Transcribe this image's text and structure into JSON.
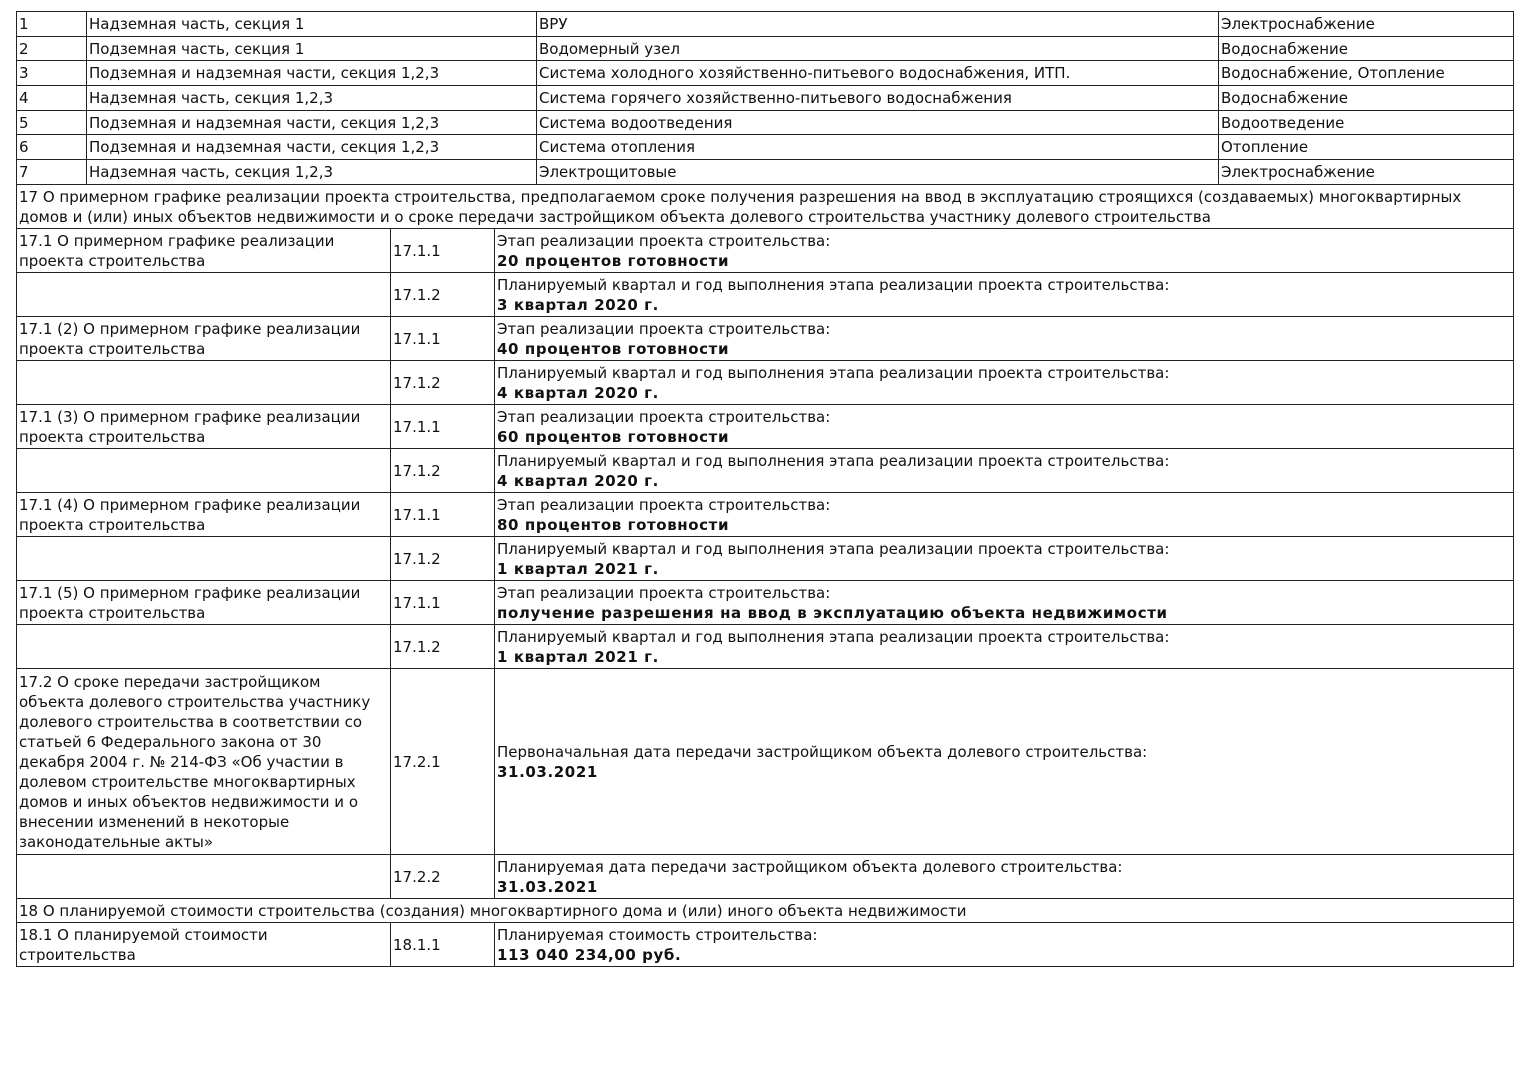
{
  "equipment_rows": [
    {
      "num": "1",
      "location": "Надземная часть, секция 1",
      "system": "ВРУ",
      "type": "Электроснабжение"
    },
    {
      "num": "2",
      "location": "Подземная часть, секция 1",
      "system": "Водомерный узел",
      "type": "Водоснабжение"
    },
    {
      "num": "3",
      "location": "Подземная и надземная части, секция 1,2,3",
      "system": "Система холодного хозяйственно-питьевого водоснабжения, ИТП.",
      "type": "Водоснабжение, Отопление"
    },
    {
      "num": "4",
      "location": "Надземная часть, секция 1,2,3",
      "system": "Система горячего хозяйственно-питьевого водоснабжения",
      "type": "Водоснабжение"
    },
    {
      "num": "5",
      "location": "Подземная и надземная части, секция 1,2,3",
      "system": "Система водоотведения",
      "type": "Водоотведение"
    },
    {
      "num": "6",
      "location": "Подземная и надземная части, секция 1,2,3",
      "system": "Система отопления",
      "type": "Отопление"
    },
    {
      "num": "7",
      "location": "Надземная часть, секция 1,2,3",
      "system": "Электрощитовые",
      "type": "Электроснабжение"
    }
  ],
  "section17": {
    "title": "17 О примерном графике реализации проекта строительства, предполагаемом сроке получения разрешения на ввод в эксплуатацию строящихся (создаваемых) многоквартирных домов и (или) иных объектов недвижимости и о сроке передачи застройщиком объекта долевого строительства участнику долевого строительства",
    "stage_label": "Этап реализации проекта строительства:",
    "quarter_label": "Планируемый квартал и год выполнения этапа реализации проекта строительства:",
    "stages": [
      {
        "title": "17.1 О примерном графике реализации проекта строительства",
        "code1": "17.1.1",
        "stage": "20 процентов готовности",
        "code2": "17.1.2",
        "quarter": "3 квартал 2020 г."
      },
      {
        "title": "17.1 (2) О примерном графике реализации проекта строительства",
        "code1": "17.1.1",
        "stage": "40 процентов готовности",
        "code2": "17.1.2",
        "quarter": "4 квартал 2020 г."
      },
      {
        "title": "17.1 (3) О примерном графике реализации проекта строительства",
        "code1": "17.1.1",
        "stage": "60 процентов готовности",
        "code2": "17.1.2",
        "quarter": "4 квартал 2020 г."
      },
      {
        "title": "17.1 (4) О примерном графике реализации проекта строительства",
        "code1": "17.1.1",
        "stage": "80 процентов готовности",
        "code2": "17.1.2",
        "quarter": "1 квартал 2021 г."
      },
      {
        "title": "17.1 (5) О примерном графике реализации проекта строительства",
        "code1": "17.1.1",
        "stage": "получение разрешения на ввод в эксплуатацию объекта недвижимости",
        "code2": "17.1.2",
        "quarter": "1 квартал 2021 г."
      }
    ],
    "transfer": {
      "title": "17.2 О сроке передачи застройщиком объекта долевого строительства участнику долевого строительства в соответствии со статьей 6 Федерального закона от 30 декабря 2004 г. № 214-ФЗ «Об участии в долевом строительстве многоквартирных домов и иных объектов недвижимости и о внесении изменений в некоторые законодательные акты»",
      "code1": "17.2.1",
      "label1": "Первоначальная дата передачи застройщиком объекта долевого строительства:",
      "date1": "31.03.2021",
      "code2": "17.2.2",
      "label2": "Планируемая дата передачи застройщиком объекта долевого строительства:",
      "date2": "31.03.2021"
    }
  },
  "section18": {
    "title": "18 О планируемой стоимости строительства (создания) многоквартирного дома и (или) иного объекта недвижимости",
    "sub_title": "18.1 О планируемой стоимости строительства",
    "code": "18.1.1",
    "label": "Планируемая стоимость строительства:",
    "value": "113 040 234,00 руб."
  }
}
